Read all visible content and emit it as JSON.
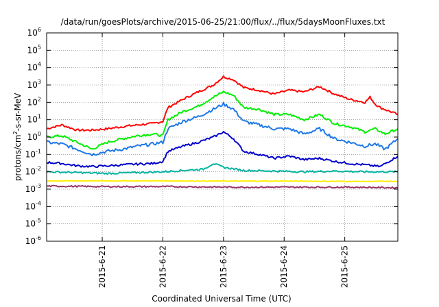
{
  "chart_data": {
    "type": "line",
    "title": "/data/run/goesPlots/archive/2015-06-25/21:00/flux/../flux/5daysMoonFluxes.txt",
    "xlabel": "Coordinated Universal Time (UTC)",
    "ylabel": {
      "prefix": "protons/cm",
      "sup": "2",
      "suffix": "-s-sr-MeV"
    },
    "y_scale": "log",
    "ylim": [
      1e-06,
      1000000.0
    ],
    "y_ticks": [
      {
        "base": "10",
        "exp": "-6",
        "value": 1e-06
      },
      {
        "base": "10",
        "exp": "-5",
        "value": 1e-05
      },
      {
        "base": "10",
        "exp": "-4",
        "value": 0.0001
      },
      {
        "base": "10",
        "exp": "-3",
        "value": 0.001
      },
      {
        "base": "10",
        "exp": "-2",
        "value": 0.01
      },
      {
        "base": "10",
        "exp": "-1",
        "value": 0.1
      },
      {
        "base": "10",
        "exp": "0",
        "value": 1
      },
      {
        "base": "10",
        "exp": "1",
        "value": 10
      },
      {
        "base": "10",
        "exp": "2",
        "value": 100
      },
      {
        "base": "10",
        "exp": "3",
        "value": 1000
      },
      {
        "base": "10",
        "exp": "4",
        "value": 10000
      },
      {
        "base": "10",
        "exp": "5",
        "value": 100000
      },
      {
        "base": "10",
        "exp": "6",
        "value": 1000000
      }
    ],
    "xlim": [
      "2015-06-20 02:00",
      "2015-06-25 21:00"
    ],
    "x_ticks": [
      {
        "label": "2015-6-21",
        "time": "2015-06-21 00:00"
      },
      {
        "label": "2015-6-22",
        "time": "2015-06-22 00:00"
      },
      {
        "label": "2015-6-23",
        "time": "2015-06-23 00:00"
      },
      {
        "label": "2015-6-24",
        "time": "2015-06-24 00:00"
      },
      {
        "label": "2015-6-25",
        "time": "2015-06-25 00:00"
      }
    ],
    "grid": true,
    "series": [
      {
        "color": "#ff0000",
        "points": [
          [
            "2015-06-20 02:00",
            3
          ],
          [
            "2015-06-20 08:00",
            5
          ],
          [
            "2015-06-20 14:00",
            2.5
          ],
          [
            "2015-06-20 20:00",
            2.5
          ],
          [
            "2015-06-21 02:00",
            3
          ],
          [
            "2015-06-21 08:00",
            4
          ],
          [
            "2015-06-21 14:00",
            5
          ],
          [
            "2015-06-21 20:00",
            6
          ],
          [
            "2015-06-22 00:00",
            8
          ],
          [
            "2015-06-22 02:00",
            50
          ],
          [
            "2015-06-22 08:00",
            150
          ],
          [
            "2015-06-22 14:00",
            400
          ],
          [
            "2015-06-22 20:00",
            1000
          ],
          [
            "2015-06-23 00:00",
            3000
          ],
          [
            "2015-06-23 04:00",
            2000
          ],
          [
            "2015-06-23 08:00",
            700
          ],
          [
            "2015-06-23 14:00",
            500
          ],
          [
            "2015-06-23 20:00",
            300
          ],
          [
            "2015-06-24 02:00",
            500
          ],
          [
            "2015-06-24 08:00",
            400
          ],
          [
            "2015-06-24 14:00",
            800
          ],
          [
            "2015-06-24 20:00",
            300
          ],
          [
            "2015-06-25 02:00",
            150
          ],
          [
            "2015-06-25 08:00",
            100
          ],
          [
            "2015-06-25 10:00",
            200
          ],
          [
            "2015-06-25 12:00",
            80
          ],
          [
            "2015-06-25 14:00",
            50
          ],
          [
            "2015-06-25 21:00",
            20
          ]
        ]
      },
      {
        "color": "#00ee00",
        "points": [
          [
            "2015-06-20 02:00",
            1
          ],
          [
            "2015-06-20 08:00",
            1.2
          ],
          [
            "2015-06-20 14:00",
            0.5
          ],
          [
            "2015-06-20 20:00",
            0.2
          ],
          [
            "2015-06-21 02:00",
            0.5
          ],
          [
            "2015-06-21 08:00",
            0.8
          ],
          [
            "2015-06-21 14:00",
            1.2
          ],
          [
            "2015-06-21 20:00",
            1.5
          ],
          [
            "2015-06-22 00:00",
            1.2
          ],
          [
            "2015-06-22 02:00",
            10
          ],
          [
            "2015-06-22 08:00",
            30
          ],
          [
            "2015-06-22 14:00",
            60
          ],
          [
            "2015-06-22 20:00",
            200
          ],
          [
            "2015-06-23 00:00",
            400
          ],
          [
            "2015-06-23 04:00",
            250
          ],
          [
            "2015-06-23 08:00",
            50
          ],
          [
            "2015-06-23 14:00",
            40
          ],
          [
            "2015-06-23 20:00",
            20
          ],
          [
            "2015-06-24 02:00",
            20
          ],
          [
            "2015-06-24 08:00",
            10
          ],
          [
            "2015-06-24 14:00",
            20
          ],
          [
            "2015-06-24 20:00",
            6
          ],
          [
            "2015-06-25 02:00",
            4
          ],
          [
            "2015-06-25 08:00",
            2
          ],
          [
            "2015-06-25 12:00",
            3
          ],
          [
            "2015-06-25 16:00",
            1.5
          ],
          [
            "2015-06-25 21:00",
            3
          ]
        ]
      },
      {
        "color": "#1e78e6",
        "points": [
          [
            "2015-06-20 02:00",
            0.5
          ],
          [
            "2015-06-20 08:00",
            0.4
          ],
          [
            "2015-06-20 14:00",
            0.2
          ],
          [
            "2015-06-20 20:00",
            0.1
          ],
          [
            "2015-06-21 02:00",
            0.15
          ],
          [
            "2015-06-21 08:00",
            0.2
          ],
          [
            "2015-06-21 14:00",
            0.3
          ],
          [
            "2015-06-21 20:00",
            0.4
          ],
          [
            "2015-06-22 00:00",
            0.5
          ],
          [
            "2015-06-22 02:00",
            3
          ],
          [
            "2015-06-22 08:00",
            8
          ],
          [
            "2015-06-22 14:00",
            15
          ],
          [
            "2015-06-22 20:00",
            40
          ],
          [
            "2015-06-23 00:00",
            80
          ],
          [
            "2015-06-23 04:00",
            40
          ],
          [
            "2015-06-23 08:00",
            8
          ],
          [
            "2015-06-23 14:00",
            5
          ],
          [
            "2015-06-23 20:00",
            3
          ],
          [
            "2015-06-24 02:00",
            3
          ],
          [
            "2015-06-24 08:00",
            1.5
          ],
          [
            "2015-06-24 14:00",
            3
          ],
          [
            "2015-06-24 20:00",
            0.8
          ],
          [
            "2015-06-25 02:00",
            0.5
          ],
          [
            "2015-06-25 08:00",
            0.3
          ],
          [
            "2015-06-25 12:00",
            0.4
          ],
          [
            "2015-06-25 16:00",
            0.2
          ],
          [
            "2015-06-25 21:00",
            0.8
          ]
        ]
      },
      {
        "color": "#0000cc",
        "points": [
          [
            "2015-06-20 02:00",
            0.035
          ],
          [
            "2015-06-20 08:00",
            0.03
          ],
          [
            "2015-06-20 14:00",
            0.022
          ],
          [
            "2015-06-20 20:00",
            0.02
          ],
          [
            "2015-06-21 02:00",
            0.022
          ],
          [
            "2015-06-21 08:00",
            0.025
          ],
          [
            "2015-06-21 14:00",
            0.028
          ],
          [
            "2015-06-21 20:00",
            0.03
          ],
          [
            "2015-06-22 00:00",
            0.04
          ],
          [
            "2015-06-22 02:00",
            0.15
          ],
          [
            "2015-06-22 08:00",
            0.3
          ],
          [
            "2015-06-22 14:00",
            0.5
          ],
          [
            "2015-06-22 20:00",
            1
          ],
          [
            "2015-06-23 00:00",
            2
          ],
          [
            "2015-06-23 04:00",
            0.8
          ],
          [
            "2015-06-23 08:00",
            0.15
          ],
          [
            "2015-06-23 14:00",
            0.1
          ],
          [
            "2015-06-23 20:00",
            0.06
          ],
          [
            "2015-06-24 02:00",
            0.08
          ],
          [
            "2015-06-24 08:00",
            0.05
          ],
          [
            "2015-06-24 14:00",
            0.06
          ],
          [
            "2015-06-24 20:00",
            0.04
          ],
          [
            "2015-06-25 02:00",
            0.03
          ],
          [
            "2015-06-25 08:00",
            0.025
          ],
          [
            "2015-06-25 14:00",
            0.02
          ],
          [
            "2015-06-25 21:00",
            0.08
          ]
        ]
      },
      {
        "color": "#00b3a0",
        "points": [
          [
            "2015-06-20 02:00",
            0.01
          ],
          [
            "2015-06-20 14:00",
            0.009
          ],
          [
            "2015-06-21 02:00",
            0.008
          ],
          [
            "2015-06-21 14:00",
            0.009
          ],
          [
            "2015-06-22 00:00",
            0.01
          ],
          [
            "2015-06-22 08:00",
            0.012
          ],
          [
            "2015-06-22 16:00",
            0.014
          ],
          [
            "2015-06-22 20:00",
            0.03
          ],
          [
            "2015-06-23 00:00",
            0.018
          ],
          [
            "2015-06-23 08:00",
            0.012
          ],
          [
            "2015-06-23 20:00",
            0.011
          ],
          [
            "2015-06-24 08:00",
            0.01
          ],
          [
            "2015-06-24 20:00",
            0.011
          ],
          [
            "2015-06-25 08:00",
            0.01
          ],
          [
            "2015-06-25 21:00",
            0.01
          ]
        ]
      },
      {
        "color": "#ffee00",
        "points": [
          [
            "2015-06-20 02:00",
            0.003
          ],
          [
            "2015-06-21 02:00",
            0.003
          ],
          [
            "2015-06-22 02:00",
            0.003
          ],
          [
            "2015-06-23 02:00",
            0.0029
          ],
          [
            "2015-06-24 02:00",
            0.0029
          ],
          [
            "2015-06-25 02:00",
            0.0028
          ],
          [
            "2015-06-25 21:00",
            0.0028
          ]
        ]
      },
      {
        "color": "#993366",
        "points": [
          [
            "2015-06-20 02:00",
            0.0015
          ],
          [
            "2015-06-21 02:00",
            0.0014
          ],
          [
            "2015-06-22 02:00",
            0.0014
          ],
          [
            "2015-06-23 02:00",
            0.0013
          ],
          [
            "2015-06-24 02:00",
            0.0013
          ],
          [
            "2015-06-25 02:00",
            0.0013
          ],
          [
            "2015-06-25 21:00",
            0.0012
          ]
        ]
      }
    ]
  }
}
